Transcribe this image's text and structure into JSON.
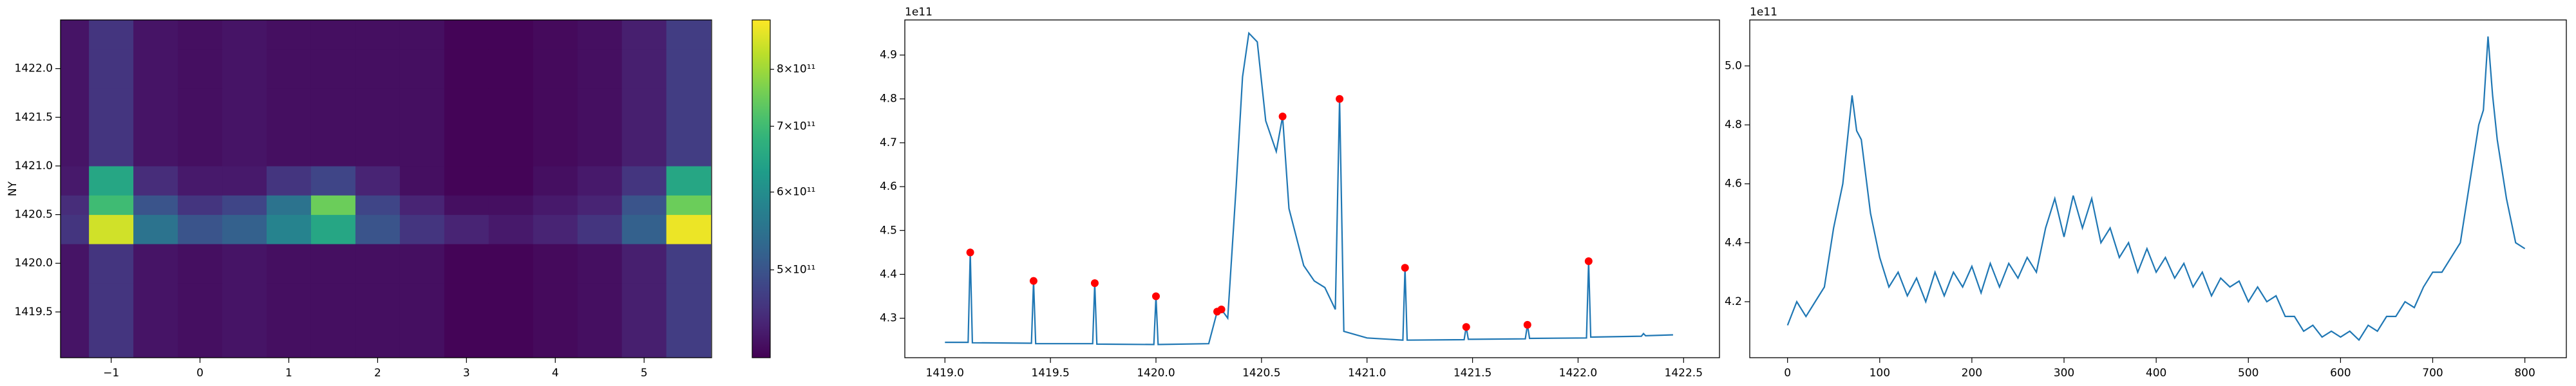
{
  "chart_data": [
    {
      "type": "heatmap",
      "ylabel": "NY",
      "x": [
        -1.5,
        -1,
        -0.5,
        0,
        0.5,
        1,
        1.5,
        2,
        2.5,
        3,
        3.5,
        4,
        4.5,
        5,
        5.5
      ],
      "y": [
        1419.2,
        1419.6,
        1420.0,
        1420.4,
        1420.6,
        1420.8,
        1421.2,
        1421.6,
        1422.0,
        1422.4
      ],
      "z": [
        [
          425000000000.0,
          460000000000.0,
          425000000000.0,
          420000000000.0,
          425000000000.0,
          420000000000.0,
          420000000000.0,
          420000000000.0,
          420000000000.0,
          410000000000.0,
          410000000000.0,
          415000000000.0,
          420000000000.0,
          435000000000.0,
          470000000000.0
        ],
        [
          425000000000.0,
          460000000000.0,
          425000000000.0,
          420000000000.0,
          425000000000.0,
          420000000000.0,
          420000000000.0,
          420000000000.0,
          420000000000.0,
          410000000000.0,
          410000000000.0,
          415000000000.0,
          420000000000.0,
          435000000000.0,
          470000000000.0
        ],
        [
          425000000000.0,
          460000000000.0,
          425000000000.0,
          420000000000.0,
          425000000000.0,
          420000000000.0,
          420000000000.0,
          420000000000.0,
          420000000000.0,
          410000000000.0,
          410000000000.0,
          415000000000.0,
          420000000000.0,
          435000000000.0,
          470000000000.0
        ],
        [
          460000000000.0,
          850000000000.0,
          550000000000.0,
          500000000000.0,
          520000000000.0,
          580000000000.0,
          650000000000.0,
          500000000000.0,
          460000000000.0,
          440000000000.0,
          430000000000.0,
          440000000000.0,
          460000000000.0,
          520000000000.0,
          880000000000.0
        ],
        [
          450000000000.0,
          700000000000.0,
          500000000000.0,
          460000000000.0,
          480000000000.0,
          550000000000.0,
          750000000000.0,
          480000000000.0,
          440000000000.0,
          420000000000.0,
          420000000000.0,
          430000000000.0,
          440000000000.0,
          500000000000.0,
          750000000000.0
        ],
        [
          430000000000.0,
          650000000000.0,
          450000000000.0,
          430000000000.0,
          430000000000.0,
          460000000000.0,
          480000000000.0,
          440000000000.0,
          420000000000.0,
          410000000000.0,
          410000000000.0,
          420000000000.0,
          430000000000.0,
          460000000000.0,
          650000000000.0
        ],
        [
          425000000000.0,
          460000000000.0,
          425000000000.0,
          420000000000.0,
          425000000000.0,
          420000000000.0,
          420000000000.0,
          420000000000.0,
          420000000000.0,
          410000000000.0,
          410000000000.0,
          415000000000.0,
          420000000000.0,
          435000000000.0,
          470000000000.0
        ],
        [
          425000000000.0,
          460000000000.0,
          425000000000.0,
          420000000000.0,
          425000000000.0,
          420000000000.0,
          420000000000.0,
          420000000000.0,
          420000000000.0,
          410000000000.0,
          410000000000.0,
          415000000000.0,
          420000000000.0,
          435000000000.0,
          470000000000.0
        ],
        [
          425000000000.0,
          460000000000.0,
          425000000000.0,
          420000000000.0,
          425000000000.0,
          420000000000.0,
          420000000000.0,
          420000000000.0,
          420000000000.0,
          410000000000.0,
          410000000000.0,
          415000000000.0,
          420000000000.0,
          435000000000.0,
          470000000000.0
        ],
        [
          425000000000.0,
          460000000000.0,
          425000000000.0,
          420000000000.0,
          425000000000.0,
          420000000000.0,
          420000000000.0,
          420000000000.0,
          420000000000.0,
          410000000000.0,
          410000000000.0,
          415000000000.0,
          420000000000.0,
          435000000000.0,
          470000000000.0
        ]
      ],
      "xlim": [
        -1.57,
        5.76
      ],
      "ylim": [
        1419.03,
        1422.5
      ],
      "xticks": [
        {
          "value": -1,
          "label": "−1"
        },
        0,
        1,
        2,
        3,
        4,
        5
      ],
      "yticks": [
        1419.5,
        {
          "value": 1420.0,
          "label": "1420.0"
        },
        1420.5,
        {
          "value": 1421.0,
          "label": "1421.0"
        },
        1421.5,
        {
          "value": 1422.0,
          "label": "1422.0"
        }
      ],
      "colormap": "viridis",
      "colorbar": {
        "scale": "log",
        "lim": [
          407000000000.0,
          898000000000.0
        ],
        "ticks": [
          {
            "value": 500000000000.0,
            "label": "5×10¹¹"
          },
          {
            "value": 600000000000.0,
            "label": "6×10¹¹"
          },
          {
            "value": 700000000000.0,
            "label": "7×10¹¹"
          },
          {
            "value": 800000000000.0,
            "label": "8×10¹¹"
          }
        ]
      }
    },
    {
      "type": "line",
      "offset_text": "1e11",
      "color": "#1f77b4",
      "x": [
        1419.0,
        1419.11,
        1419.12,
        1419.13,
        1419.41,
        1419.42,
        1419.43,
        1419.7,
        1419.71,
        1419.72,
        1419.99,
        1420.0,
        1420.01,
        1420.25,
        1420.29,
        1420.31,
        1420.34,
        1420.38,
        1420.41,
        1420.44,
        1420.48,
        1420.52,
        1420.57,
        1420.6,
        1420.63,
        1420.7,
        1420.75,
        1420.8,
        1420.85,
        1420.87,
        1420.89,
        1421.0,
        1421.17,
        1421.18,
        1421.19,
        1421.46,
        1421.47,
        1421.48,
        1421.75,
        1421.76,
        1421.77,
        1422.04,
        1422.05,
        1422.06,
        1422.3,
        1422.31,
        1422.32,
        1422.45
      ],
      "values": [
        4.245,
        4.245,
        4.45,
        4.244,
        4.243,
        4.385,
        4.242,
        4.242,
        4.38,
        4.241,
        4.24,
        4.35,
        4.24,
        4.242,
        4.315,
        4.32,
        4.3,
        4.6,
        4.85,
        4.95,
        4.93,
        4.75,
        4.68,
        4.76,
        4.55,
        4.42,
        4.385,
        4.37,
        4.32,
        4.8,
        4.27,
        4.255,
        4.25,
        4.415,
        4.25,
        4.251,
        4.28,
        4.252,
        4.253,
        4.285,
        4.254,
        4.255,
        4.43,
        4.257,
        4.259,
        4.265,
        4.26,
        4.262
      ],
      "peaks": {
        "color": "red",
        "x": [
          1419.12,
          1419.42,
          1419.71,
          1420.0,
          1420.29,
          1420.31,
          1420.6,
          1420.87,
          1421.18,
          1421.47,
          1421.76,
          1422.05
        ],
        "values": [
          4.45,
          4.385,
          4.38,
          4.35,
          4.315,
          4.32,
          4.76,
          4.8,
          4.415,
          4.28,
          4.285,
          4.43
        ]
      },
      "xlim": [
        1418.81,
        1422.67
      ],
      "ylim": [
        4.21,
        4.98
      ],
      "xticks": [
        {
          "value": 1419.0,
          "label": "1419.0"
        },
        1419.5,
        {
          "value": 1420.0,
          "label": "1420.0"
        },
        1420.5,
        {
          "value": 1421.0,
          "label": "1421.0"
        },
        1421.5,
        {
          "value": 1422.0,
          "label": "1422.0"
        },
        1422.5
      ],
      "yticks": [
        4.3,
        4.4,
        4.5,
        4.6,
        4.7,
        4.8,
        4.9
      ]
    },
    {
      "type": "line",
      "offset_text": "1e11",
      "color": "#1f77b4",
      "x": [
        0,
        10,
        20,
        30,
        40,
        50,
        60,
        65,
        70,
        75,
        80,
        90,
        100,
        110,
        120,
        130,
        140,
        150,
        160,
        170,
        180,
        190,
        200,
        210,
        220,
        230,
        240,
        250,
        260,
        270,
        280,
        290,
        300,
        310,
        320,
        330,
        340,
        350,
        360,
        370,
        380,
        390,
        400,
        410,
        420,
        430,
        440,
        450,
        460,
        470,
        480,
        490,
        500,
        510,
        520,
        530,
        540,
        550,
        560,
        570,
        580,
        590,
        600,
        610,
        620,
        630,
        640,
        650,
        660,
        670,
        680,
        690,
        700,
        710,
        720,
        730,
        740,
        750,
        755,
        760,
        765,
        770,
        780,
        790,
        800
      ],
      "values": [
        4.12,
        4.2,
        4.15,
        4.2,
        4.25,
        4.45,
        4.6,
        4.75,
        4.9,
        4.78,
        4.75,
        4.5,
        4.35,
        4.25,
        4.3,
        4.22,
        4.28,
        4.2,
        4.3,
        4.22,
        4.3,
        4.25,
        4.32,
        4.23,
        4.33,
        4.25,
        4.33,
        4.28,
        4.35,
        4.3,
        4.45,
        4.55,
        4.42,
        4.56,
        4.45,
        4.55,
        4.4,
        4.45,
        4.35,
        4.4,
        4.3,
        4.38,
        4.3,
        4.35,
        4.28,
        4.33,
        4.25,
        4.3,
        4.22,
        4.28,
        4.25,
        4.27,
        4.2,
        4.25,
        4.2,
        4.22,
        4.15,
        4.15,
        4.1,
        4.12,
        4.08,
        4.1,
        4.08,
        4.1,
        4.07,
        4.12,
        4.1,
        4.15,
        4.15,
        4.2,
        4.18,
        4.25,
        4.3,
        4.3,
        4.35,
        4.4,
        4.6,
        4.8,
        4.85,
        5.1,
        4.9,
        4.75,
        4.55,
        4.4,
        4.38
      ],
      "xlim": [
        -41,
        845
      ],
      "ylim": [
        4.01,
        5.156
      ],
      "xticks": [
        0,
        100,
        200,
        300,
        400,
        500,
        600,
        700,
        800
      ],
      "yticks": [
        4.2,
        4.4,
        4.6,
        4.8,
        {
          "value": 5.0,
          "label": "5.0"
        }
      ]
    }
  ]
}
